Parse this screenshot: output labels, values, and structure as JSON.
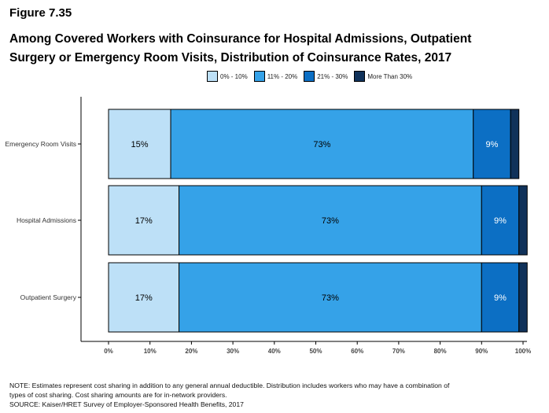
{
  "figure_label": "Figure 7.35",
  "chart_data": {
    "type": "bar",
    "orientation": "horizontal",
    "stacked": true,
    "title": "Among Covered Workers with Coinsurance for Hospital Admissions, Outpatient Surgery or Emergency Room Visits, Distribution of Coinsurance Rates, 2017",
    "categories": [
      "Emergency Room Visits",
      "Hospital Admissions",
      "Outpatient Surgery"
    ],
    "series": [
      {
        "name": "0% - 10%",
        "color": "#bde0f7",
        "values": [
          15,
          17,
          17
        ],
        "labels": [
          "15%",
          "17%",
          "17%"
        ]
      },
      {
        "name": "11% - 20%",
        "color": "#35a2e8",
        "values": [
          73,
          73,
          73
        ],
        "labels": [
          "73%",
          "73%",
          "73%"
        ]
      },
      {
        "name": "21% - 30%",
        "color": "#0c6fc4",
        "values": [
          9,
          9,
          9
        ],
        "labels": [
          "9%",
          "9%",
          "9%"
        ]
      },
      {
        "name": "More Than 30%",
        "color": "#10325a",
        "values": [
          2,
          2,
          2
        ],
        "labels": [
          "",
          "",
          ""
        ]
      }
    ],
    "xlim": [
      0,
      100
    ],
    "xticks": [
      "0%",
      "10%",
      "20%",
      "30%",
      "40%",
      "50%",
      "60%",
      "70%",
      "80%",
      "90%",
      "100%"
    ],
    "legend_position": "top",
    "grid": false
  },
  "notes": {
    "line1": "NOTE: Estimates represent cost sharing in addition to any general annual deductible. Distribution includes workers who may have a combination of",
    "line2": "types of cost sharing. Cost sharing amounts are for in-network providers.",
    "line3": "SOURCE: Kaiser/HRET Survey of Employer-Sponsored Health Benefits, 2017"
  }
}
